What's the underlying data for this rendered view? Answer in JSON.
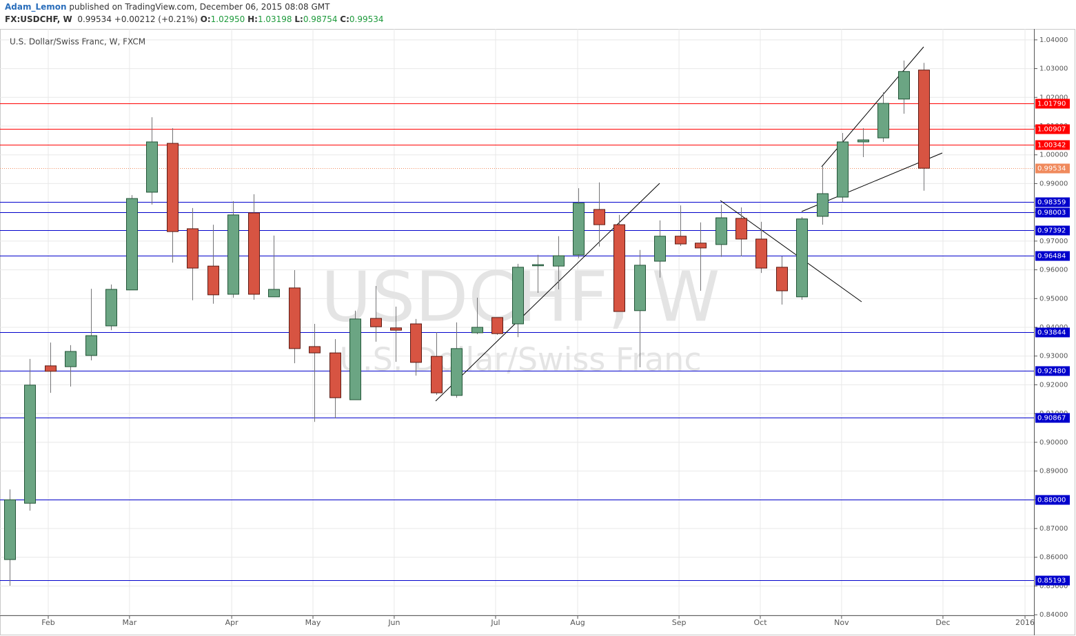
{
  "header": {
    "author": "Adam_Lemon",
    "published": "published on TradingView.com, December 06, 2015 08:08 GMT",
    "symbol": "FX:USDCHF, W",
    "last": "0.99534",
    "change": "+0.00212 (+0.21%)",
    "o_label": "O:",
    "o": "1.02950",
    "h_label": "H:",
    "h": "1.03198",
    "l_label": "L:",
    "l": "0.98754",
    "c_label": "C:",
    "c": "0.99534"
  },
  "chart_data": {
    "type": "candlestick",
    "title": "U.S. Dollar/Swiss Franc, W, FXCM",
    "watermark": "USDCHF, W",
    "watermark_subtitle": "U.S. Dollar/Swiss Franc",
    "up_color": "#6ba583",
    "down_color": "#d75442",
    "open": [
      0.8592,
      0.8788,
      0.9266,
      0.9263,
      0.9302,
      0.9405,
      0.953,
      0.987,
      1.004,
      0.9743,
      0.9613,
      0.9515,
      0.9798,
      0.9506,
      0.9537,
      0.9333,
      0.9311,
      0.9148,
      0.9431,
      0.9398,
      0.9412,
      0.9299,
      0.9163,
      0.9381,
      0.9434,
      0.9412,
      0.9614,
      0.9613,
      0.9652,
      0.981,
      0.9757,
      0.9458,
      0.963,
      0.9717,
      0.9693,
      0.9688,
      0.9779,
      0.9707,
      0.9609,
      0.9506,
      0.9786,
      0.9853,
      1.0045,
      1.0059,
      1.0194,
      1.0295
    ],
    "high": [
      0.8836,
      0.929,
      0.9347,
      0.9338,
      0.9534,
      0.9549,
      0.986,
      1.0131,
      1.0093,
      0.9815,
      0.9757,
      0.9839,
      0.9863,
      0.9719,
      0.9599,
      0.9412,
      0.9359,
      0.9458,
      0.9544,
      0.9472,
      0.9429,
      0.9383,
      0.9417,
      0.9503,
      0.9434,
      0.9621,
      0.9652,
      0.9717,
      0.9884,
      0.9904,
      0.9791,
      0.9669,
      0.9772,
      0.9824,
      0.9765,
      0.9827,
      0.9817,
      0.9767,
      0.9647,
      0.9784,
      0.9959,
      1.0076,
      1.0093,
      1.0218,
      1.0328,
      1.03198
    ],
    "low": [
      0.8501,
      0.8762,
      0.9172,
      0.9194,
      0.9285,
      0.939,
      0.953,
      0.9827,
      0.9625,
      0.9494,
      0.9482,
      0.9503,
      0.9496,
      0.9506,
      0.9275,
      0.9071,
      0.9083,
      0.9148,
      0.935,
      0.928,
      0.9232,
      0.9165,
      0.9155,
      0.9376,
      0.9374,
      0.9366,
      0.952,
      0.9532,
      0.964,
      0.9681,
      0.9455,
      0.9261,
      0.9573,
      0.9683,
      0.9527,
      0.9645,
      0.9647,
      0.9589,
      0.9479,
      0.9496,
      0.9757,
      0.9836,
      0.9992,
      1.0045,
      1.0143,
      0.98754
    ],
    "close": [
      0.88,
      0.9199,
      0.9247,
      0.9316,
      0.9371,
      0.9532,
      0.9848,
      1.0045,
      0.9733,
      0.9606,
      0.9513,
      0.9791,
      0.9515,
      0.9532,
      0.9326,
      0.9311,
      0.9155,
      0.9429,
      0.9402,
      0.939,
      0.9278,
      0.9172,
      0.9326,
      0.94,
      0.9378,
      0.9609,
      0.9618,
      0.9649,
      0.9832,
      0.9757,
      0.9455,
      0.9616,
      0.9717,
      0.969,
      0.9676,
      0.9781,
      0.9707,
      0.9606,
      0.9527,
      0.9777,
      0.9865,
      1.0045,
      1.0052,
      1.0179,
      1.029,
      0.99534
    ],
    "xlim": [
      -0.475,
      50.42
    ],
    "xticks": [
      {
        "value": 1.9,
        "label": "Feb"
      },
      {
        "value": 5.9,
        "label": "Mar"
      },
      {
        "value": 10.93,
        "label": "Apr"
      },
      {
        "value": 14.93,
        "label": "May"
      },
      {
        "value": 18.93,
        "label": "Jun"
      },
      {
        "value": 23.92,
        "label": "Jul"
      },
      {
        "value": 27.96,
        "label": "Aug"
      },
      {
        "value": 32.95,
        "label": "Sep"
      },
      {
        "value": 36.95,
        "label": "Oct"
      },
      {
        "value": 40.95,
        "label": "Nov"
      },
      {
        "value": 45.94,
        "label": "Dec"
      },
      {
        "value": 49.98,
        "label": "2016"
      }
    ],
    "ylim": [
      0.8398,
      1.0438
    ],
    "yticks": [
      {
        "value": 0.84,
        "label": "0.84000"
      },
      {
        "value": 0.85,
        "label": "0.85000"
      },
      {
        "value": 0.86,
        "label": "0.86000"
      },
      {
        "value": 0.87,
        "label": "0.87000"
      },
      {
        "value": 0.88,
        "label": "0.88000"
      },
      {
        "value": 0.89,
        "label": "0.89000"
      },
      {
        "value": 0.9,
        "label": "0.90000"
      },
      {
        "value": 0.91,
        "label": "0.91000"
      },
      {
        "value": 0.92,
        "label": "0.92000"
      },
      {
        "value": 0.93,
        "label": "0.93000"
      },
      {
        "value": 0.94,
        "label": "0.94000"
      },
      {
        "value": 0.95,
        "label": "0.95000"
      },
      {
        "value": 0.96,
        "label": "0.96000"
      },
      {
        "value": 0.97,
        "label": "0.97000"
      },
      {
        "value": 0.98,
        "label": "0.98000"
      },
      {
        "value": 0.99,
        "label": "0.99000"
      },
      {
        "value": 1.0,
        "label": "1.00000"
      },
      {
        "value": 1.01,
        "label": "1.01000"
      },
      {
        "value": 1.02,
        "label": "1.02000"
      },
      {
        "value": 1.03,
        "label": "1.03000"
      },
      {
        "value": 1.04,
        "label": "1.04000"
      }
    ],
    "grid": true,
    "levels": [
      {
        "value": 1.0179,
        "label": "1.01790",
        "color": "#ff0000"
      },
      {
        "value": 1.00907,
        "label": "1.00907",
        "color": "#ff0000"
      },
      {
        "value": 1.00342,
        "label": "1.00342",
        "color": "#ff0000"
      },
      {
        "value": 0.99534,
        "label": "0.99534",
        "color": "#f08a5d",
        "dotted": true
      },
      {
        "value": 0.98359,
        "label": "0.98359",
        "color": "#0000cc"
      },
      {
        "value": 0.98003,
        "label": "0.98003",
        "color": "#0000cc"
      },
      {
        "value": 0.97392,
        "label": "0.97392",
        "color": "#0000cc"
      },
      {
        "value": 0.96484,
        "label": "0.96484",
        "color": "#0000cc"
      },
      {
        "value": 0.93844,
        "label": "0.93844",
        "color": "#0000cc"
      },
      {
        "value": 0.9248,
        "label": "0.92480",
        "color": "#0000cc"
      },
      {
        "value": 0.90867,
        "label": "0.90867",
        "color": "#0000cc"
      },
      {
        "value": 0.88,
        "label": "0.88000",
        "color": "#0000cc"
      },
      {
        "value": 0.85193,
        "label": "0.85193",
        "color": "#0000cc"
      }
    ]
  }
}
